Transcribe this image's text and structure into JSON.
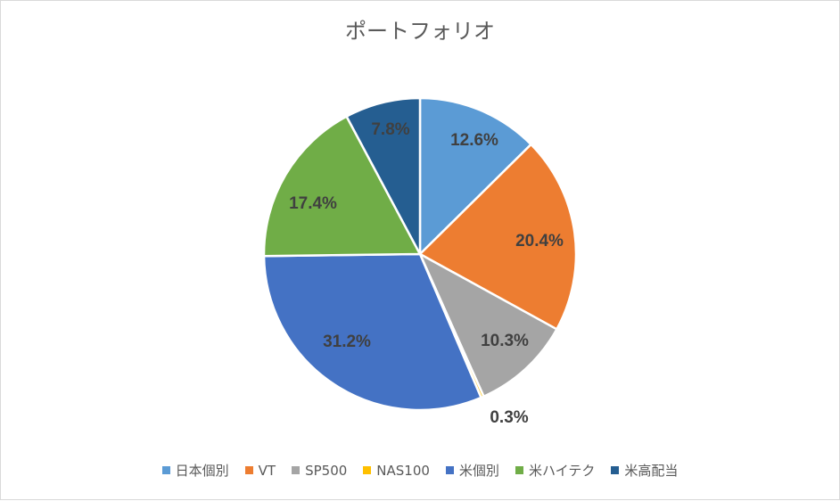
{
  "chart_data": {
    "type": "pie",
    "title": "ポートフォリオ",
    "categories": [
      "日本個別",
      "VT",
      "SP500",
      "NAS100",
      "米個別",
      "米ハイテク",
      "米高配当"
    ],
    "values": [
      12.6,
      20.4,
      10.3,
      0.3,
      31.2,
      17.4,
      7.8
    ],
    "labels": [
      "12.6%",
      "20.4%",
      "10.3%",
      "0.3%",
      "31.2%",
      "17.4%",
      "7.8%"
    ],
    "colors": [
      "#5b9bd5",
      "#ed7d31",
      "#a5a5a5",
      "#ffc000",
      "#4472c4",
      "#70ad47",
      "#255e91"
    ],
    "legend_position": "bottom",
    "start_angle": "12 o'clock",
    "direction": "clockwise"
  }
}
